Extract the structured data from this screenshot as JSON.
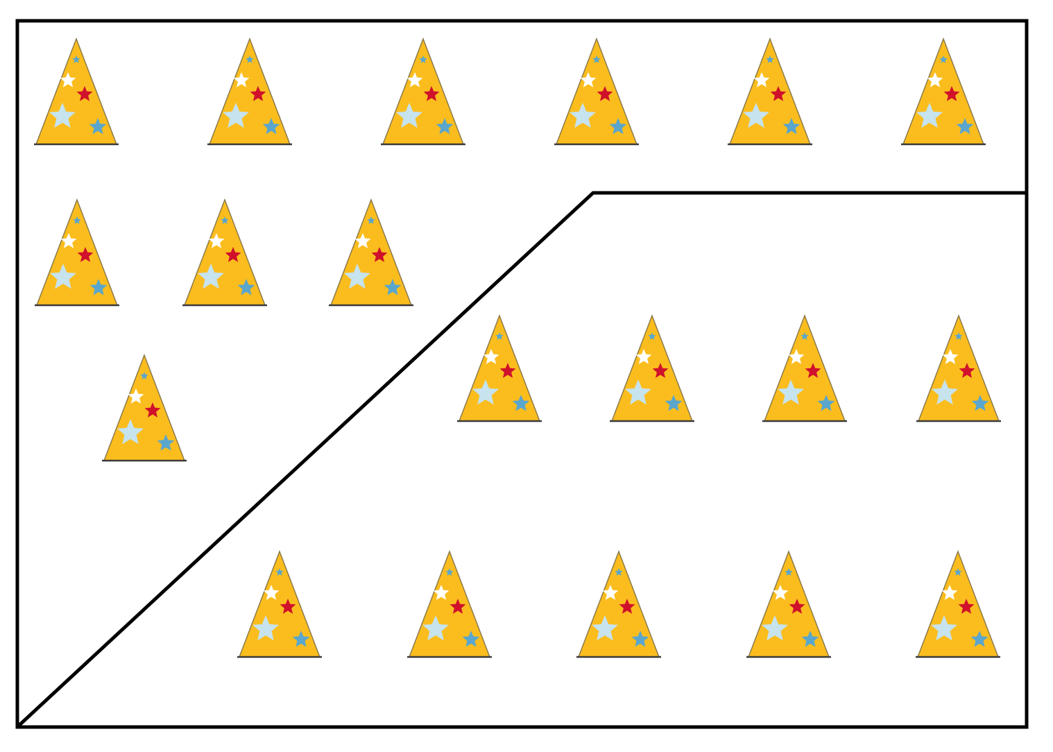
{
  "figure": {
    "description_free": true,
    "regions": [
      {
        "id": "upper-left-region",
        "item_count": 10
      },
      {
        "id": "lower-right-region",
        "item_count": 9
      }
    ],
    "item": {
      "icon": "party-hat-icon",
      "stars": [
        {
          "icon": "star-icon",
          "color": "#5aa6cc"
        },
        {
          "icon": "star-icon",
          "color": "#ffffff"
        },
        {
          "icon": "star-icon",
          "color": "#d0112b"
        },
        {
          "icon": "star-icon",
          "color": "#c6e3ee"
        },
        {
          "icon": "star-icon",
          "color": "#5aa6cc"
        }
      ]
    },
    "colors": {
      "hat_fill": "#fbbd1e",
      "hat_edge": "#8a7a4a",
      "boundary": "#000000",
      "background": "#ffffff"
    }
  }
}
